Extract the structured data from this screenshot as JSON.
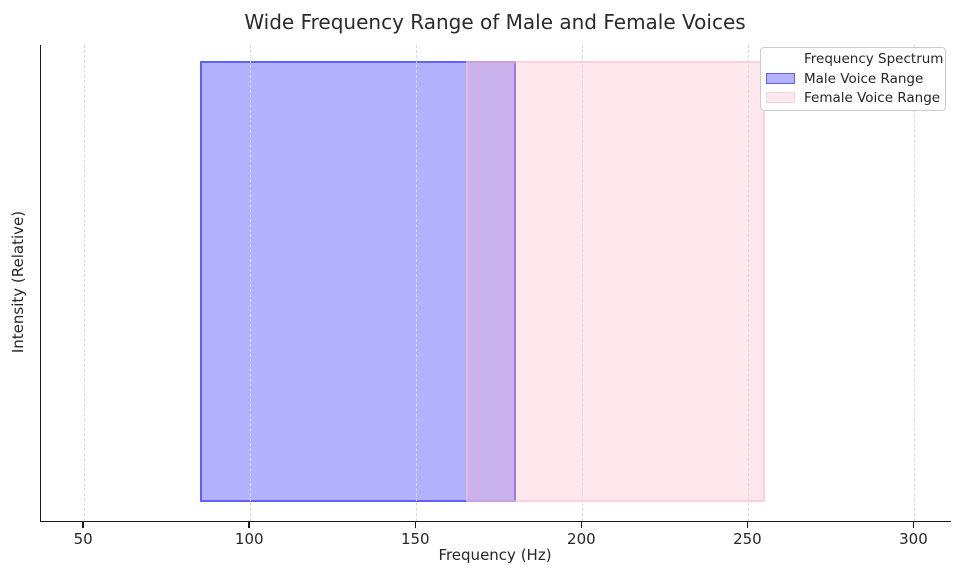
{
  "colors": {
    "background": "#ffffff",
    "text": "#262626",
    "spine": "#1a1a1a",
    "grid": "#d9d9d9",
    "male_fill": "rgba(0,0,255,0.30)",
    "male_edge": "rgba(0,0,255,0.46)",
    "female_fill": "rgba(255,185,200,0.32)",
    "female_edge": "rgba(248,190,205,0.55)"
  },
  "chart_data": {
    "type": "area",
    "title": "Wide Frequency Range of Male and Female Voices",
    "xlabel": "Frequency (Hz)",
    "ylabel": "Intensity (Relative)",
    "xlim": [
      37,
      311
    ],
    "x_ticks": [
      50,
      100,
      150,
      200,
      250,
      300
    ],
    "y_ticks": [],
    "grid": {
      "axis": "x",
      "style": "dashed",
      "color": "#d9d9d9"
    },
    "series": [
      {
        "name": "Male Voice Range",
        "kind": "vspan",
        "x_start": 85,
        "x_end": 180,
        "fill": "rgba(0,0,255,0.30)",
        "edge": "rgba(0,0,255,0.46)"
      },
      {
        "name": "Female Voice Range",
        "kind": "vspan",
        "x_start": 165,
        "x_end": 255,
        "fill": "rgba(255,185,200,0.32)",
        "edge": "rgba(248,190,205,0.55)"
      }
    ],
    "legend": {
      "title": "Frequency Spectrum",
      "position": "upper-right"
    }
  }
}
